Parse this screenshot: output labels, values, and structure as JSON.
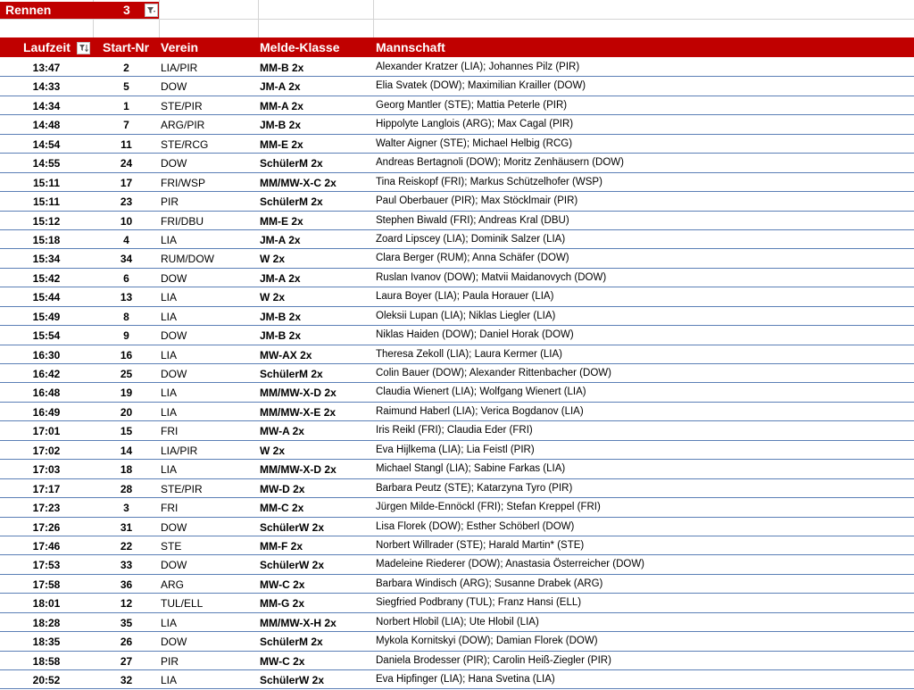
{
  "filter": {
    "label": "Rennen",
    "value": "3"
  },
  "headers": {
    "laufzeit": "Laufzeit",
    "start_nr": "Start-Nr",
    "verein": "Verein",
    "melde_klasse": "Melde-Klasse",
    "mannschaft": "Mannschaft"
  },
  "colors": {
    "header_bg": "#c00000",
    "row_border": "#5b7fb6"
  },
  "rows": [
    {
      "laufzeit": "13:47",
      "start_nr": "2",
      "verein": "LIA/PIR",
      "klasse": "MM-B 2x",
      "mannschaft": "Alexander Kratzer (LIA); Johannes Pilz (PIR)"
    },
    {
      "laufzeit": "14:33",
      "start_nr": "5",
      "verein": "DOW",
      "klasse": "JM-A 2x",
      "mannschaft": "Elia Svatek (DOW); Maximilian Krailler (DOW)"
    },
    {
      "laufzeit": "14:34",
      "start_nr": "1",
      "verein": "STE/PIR",
      "klasse": "MM-A 2x",
      "mannschaft": "Georg Mantler (STE); Mattia Peterle (PIR)"
    },
    {
      "laufzeit": "14:48",
      "start_nr": "7",
      "verein": "ARG/PIR",
      "klasse": "JM-B 2x",
      "mannschaft": "Hippolyte Langlois (ARG); Max Cagal (PIR)"
    },
    {
      "laufzeit": "14:54",
      "start_nr": "11",
      "verein": "STE/RCG",
      "klasse": "MM-E 2x",
      "mannschaft": "Walter Aigner (STE); Michael Helbig (RCG)"
    },
    {
      "laufzeit": "14:55",
      "start_nr": "24",
      "verein": "DOW",
      "klasse": "SchülerM 2x",
      "mannschaft": "Andreas Bertagnoli (DOW); Moritz Zenhäusern (DOW)"
    },
    {
      "laufzeit": "15:11",
      "start_nr": "17",
      "verein": "FRI/WSP",
      "klasse": "MM/MW-X-C 2x",
      "mannschaft": "Tina Reiskopf (FRI); Markus Schützelhofer (WSP)"
    },
    {
      "laufzeit": "15:11",
      "start_nr": "23",
      "verein": "PIR",
      "klasse": "SchülerM 2x",
      "mannschaft": "Paul Oberbauer (PIR); Max Stöcklmair (PIR)"
    },
    {
      "laufzeit": "15:12",
      "start_nr": "10",
      "verein": "FRI/DBU",
      "klasse": "MM-E 2x",
      "mannschaft": "Stephen Biwald (FRI); Andreas Kral (DBU)"
    },
    {
      "laufzeit": "15:18",
      "start_nr": "4",
      "verein": "LIA",
      "klasse": "JM-A 2x",
      "mannschaft": "Zoard Lipscey (LIA); Dominik Salzer (LIA)"
    },
    {
      "laufzeit": "15:34",
      "start_nr": "34",
      "verein": "RUM/DOW",
      "klasse": "W 2x",
      "mannschaft": "Clara Berger (RUM); Anna Schäfer (DOW)"
    },
    {
      "laufzeit": "15:42",
      "start_nr": "6",
      "verein": "DOW",
      "klasse": "JM-A 2x",
      "mannschaft": "Ruslan Ivanov (DOW); Matvii Maidanovych (DOW)"
    },
    {
      "laufzeit": "15:44",
      "start_nr": "13",
      "verein": "LIA",
      "klasse": "W 2x",
      "mannschaft": "Laura Boyer (LIA); Paula Horauer (LIA)"
    },
    {
      "laufzeit": "15:49",
      "start_nr": "8",
      "verein": "LIA",
      "klasse": "JM-B 2x",
      "mannschaft": "Oleksii Lupan (LIA); Niklas Liegler (LIA)"
    },
    {
      "laufzeit": "15:54",
      "start_nr": "9",
      "verein": "DOW",
      "klasse": "JM-B 2x",
      "mannschaft": "Niklas Haiden (DOW); Daniel Horak (DOW)"
    },
    {
      "laufzeit": "16:30",
      "start_nr": "16",
      "verein": "LIA",
      "klasse": "MW-AX 2x",
      "mannschaft": "Theresa Zekoll (LIA); Laura Kermer (LIA)"
    },
    {
      "laufzeit": "16:42",
      "start_nr": "25",
      "verein": "DOW",
      "klasse": "SchülerM 2x",
      "mannschaft": "Colin Bauer (DOW); Alexander Rittenbacher (DOW)"
    },
    {
      "laufzeit": "16:48",
      "start_nr": "19",
      "verein": "LIA",
      "klasse": "MM/MW-X-D 2x",
      "mannschaft": "Claudia Wienert (LIA); Wolfgang Wienert (LIA)"
    },
    {
      "laufzeit": "16:49",
      "start_nr": "20",
      "verein": "LIA",
      "klasse": "MM/MW-X-E 2x",
      "mannschaft": "Raimund Haberl (LIA); Verica Bogdanov (LIA)"
    },
    {
      "laufzeit": "17:01",
      "start_nr": "15",
      "verein": "FRI",
      "klasse": "MW-A 2x",
      "mannschaft": "Iris Reikl (FRI); Claudia Eder (FRI)"
    },
    {
      "laufzeit": "17:02",
      "start_nr": "14",
      "verein": "LIA/PIR",
      "klasse": "W 2x",
      "mannschaft": "Eva Hijlkema (LIA); Lia Feistl (PIR)"
    },
    {
      "laufzeit": "17:03",
      "start_nr": "18",
      "verein": "LIA",
      "klasse": "MM/MW-X-D 2x",
      "mannschaft": "Michael Stangl (LIA); Sabine Farkas (LIA)"
    },
    {
      "laufzeit": "17:17",
      "start_nr": "28",
      "verein": "STE/PIR",
      "klasse": "MW-D 2x",
      "mannschaft": "Barbara Peutz (STE); Katarzyna Tyro (PIR)"
    },
    {
      "laufzeit": "17:23",
      "start_nr": "3",
      "verein": "FRI",
      "klasse": "MM-C 2x",
      "mannschaft": "Jürgen Milde-Ennöckl (FRI); Stefan Kreppel (FRI)"
    },
    {
      "laufzeit": "17:26",
      "start_nr": "31",
      "verein": "DOW",
      "klasse": "SchülerW 2x",
      "mannschaft": "Lisa Florek (DOW); Esther Schöberl (DOW)"
    },
    {
      "laufzeit": "17:46",
      "start_nr": "22",
      "verein": "STE",
      "klasse": "MM-F 2x",
      "mannschaft": "Norbert Willrader (STE); Harald Martin* (STE)"
    },
    {
      "laufzeit": "17:53",
      "start_nr": "33",
      "verein": "DOW",
      "klasse": "SchülerW 2x",
      "mannschaft": "Madeleine Riederer (DOW); Anastasia Österreicher (DOW)"
    },
    {
      "laufzeit": "17:58",
      "start_nr": "36",
      "verein": "ARG",
      "klasse": "MW-C 2x",
      "mannschaft": "Barbara Windisch (ARG); Susanne Drabek (ARG)"
    },
    {
      "laufzeit": "18:01",
      "start_nr": "12",
      "verein": "TUL/ELL",
      "klasse": "MM-G 2x",
      "mannschaft": "Siegfried Podbrany (TUL); Franz Hansi (ELL)"
    },
    {
      "laufzeit": "18:28",
      "start_nr": "35",
      "verein": "LIA",
      "klasse": "MM/MW-X-H 2x",
      "mannschaft": "Norbert Hlobil (LIA); Ute Hlobil (LIA)"
    },
    {
      "laufzeit": "18:35",
      "start_nr": "26",
      "verein": "DOW",
      "klasse": "SchülerM 2x",
      "mannschaft": "Mykola Kornitskyi (DOW); Damian Florek (DOW)"
    },
    {
      "laufzeit": "18:58",
      "start_nr": "27",
      "verein": "PIR",
      "klasse": "MW-C 2x",
      "mannschaft": "Daniela Brodesser (PIR); Carolin Heiß-Ziegler (PIR)"
    },
    {
      "laufzeit": "20:52",
      "start_nr": "32",
      "verein": "LIA",
      "klasse": "SchülerW 2x",
      "mannschaft": "Eva Hipfinger (LIA); Hana Svetina (LIA)"
    }
  ]
}
